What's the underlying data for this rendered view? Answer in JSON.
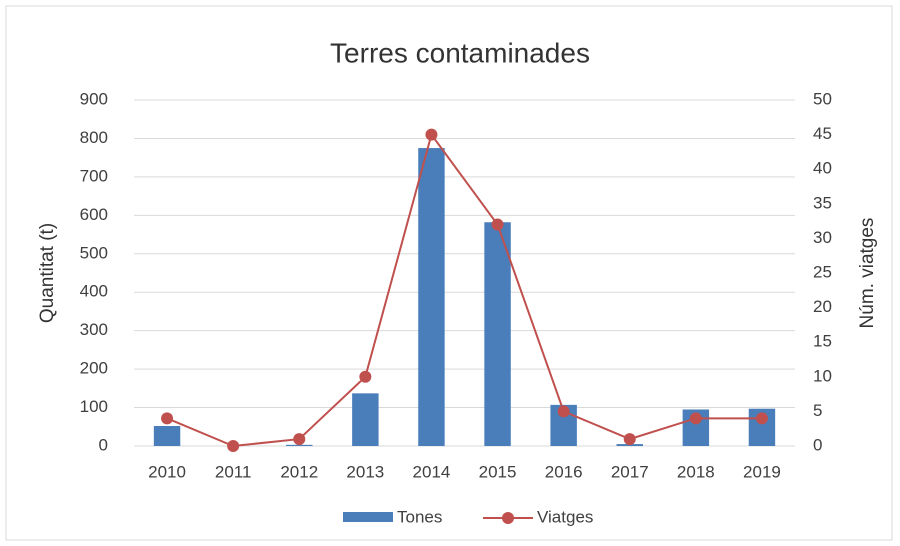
{
  "chart_data": {
    "type": "bar",
    "title": "Terres contaminades",
    "y_label": "Quantitat (t)",
    "y2_label": "Núm. viatges",
    "categories": [
      "2010",
      "2011",
      "2012",
      "2013",
      "2014",
      "2015",
      "2016",
      "2017",
      "2018",
      "2019"
    ],
    "series": [
      {
        "name": "Tones",
        "type": "bar",
        "color": "#4a7ebb",
        "values": [
          52,
          0,
          3,
          137,
          775,
          582,
          107,
          5,
          95,
          97
        ]
      },
      {
        "name": "Viatges",
        "type": "line",
        "axis": "y2",
        "color": "#c0504d",
        "values": [
          4,
          0,
          1,
          10,
          45,
          32,
          5,
          1,
          4,
          4
        ]
      }
    ],
    "ylim": [
      0,
      900
    ],
    "yticks": [
      0,
      100,
      200,
      300,
      400,
      500,
      600,
      700,
      800,
      900
    ],
    "y2lim": [
      0,
      50
    ],
    "y2ticks": [
      0,
      5,
      10,
      15,
      20,
      25,
      30,
      35,
      40,
      45,
      50
    ],
    "grid": true,
    "legend": "bottom"
  }
}
